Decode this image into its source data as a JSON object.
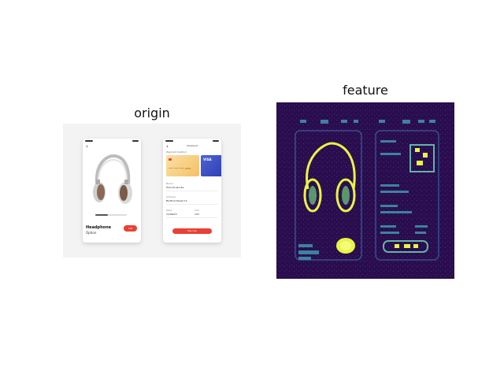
{
  "figure": {
    "left_title": "origin",
    "right_title": "feature"
  },
  "origin": {
    "product_screen": {
      "back_icon": "back-arrow-icon",
      "brand": "",
      "product_name": "Headphone",
      "product_sub": "Option",
      "add_button": "Add"
    },
    "checkout_screen": {
      "title": "Checkout",
      "section_label": "Payment method",
      "card_brand": "VISA",
      "card_number": "**** **** **** 4231",
      "name_label": "Name",
      "name_value": "Hannah Jacobs",
      "address_label": "Address",
      "address_value": "Bedford Street 12",
      "date_label": "Date",
      "date_value": "12/06/23",
      "cvv_label": "CVV",
      "cvv_value": "123",
      "pay_button": "Pay now"
    }
  },
  "colors": {
    "accent": "#e94132",
    "card_gold": "#f5c064",
    "card_blue": "#2e3fb0",
    "heatmap_bg": "#2a0d4e",
    "heatmap_low": "#3b5fa0",
    "heatmap_high": "#e8f542"
  }
}
